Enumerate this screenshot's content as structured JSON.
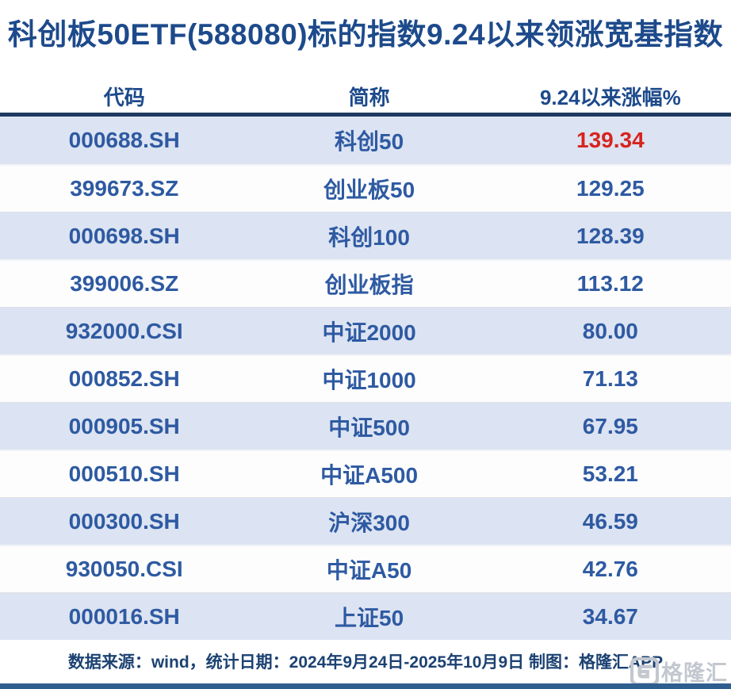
{
  "title": "科创板50ETF(588080)标的指数9.24以来领涨宽基指数",
  "table": {
    "headers": [
      "代码",
      "简称",
      "9.24以来涨幅%"
    ],
    "rows": [
      {
        "code": "000688.SH",
        "name": "科创50",
        "change": "139.34",
        "highlight": true
      },
      {
        "code": "399673.SZ",
        "name": "创业板50",
        "change": "129.25",
        "highlight": false
      },
      {
        "code": "000698.SH",
        "name": "科创100",
        "change": "128.39",
        "highlight": false
      },
      {
        "code": "399006.SZ",
        "name": "创业板指",
        "change": "113.12",
        "highlight": false
      },
      {
        "code": "932000.CSI",
        "name": "中证2000",
        "change": "80.00",
        "highlight": false
      },
      {
        "code": "000852.SH",
        "name": "中证1000",
        "change": "71.13",
        "highlight": false
      },
      {
        "code": "000905.SH",
        "name": "中证500",
        "change": "67.95",
        "highlight": false
      },
      {
        "code": "000510.SH",
        "name": "中证A500",
        "change": "53.21",
        "highlight": false
      },
      {
        "code": "000300.SH",
        "name": "沪深300",
        "change": "46.59",
        "highlight": false
      },
      {
        "code": "930050.CSI",
        "name": "中证A50",
        "change": "42.76",
        "highlight": false
      },
      {
        "code": "000016.SH",
        "name": "上证50",
        "change": "34.67",
        "highlight": false
      }
    ]
  },
  "footer": {
    "text": "数据来源：wind，统计日期：2024年9月24日-2025年10月9日 制图：格隆汇APP"
  },
  "logo": {
    "icon": "gelonghui-g-icon",
    "text": "格隆汇"
  },
  "colors": {
    "accent_navy": "#1d4a8b",
    "cell_blue": "#2e5aa2",
    "highlight_red": "#d6251f",
    "row_alt_bg": "#dce3f2",
    "top_border": "#1e3a5f",
    "bottom_border": "#2f5f8f",
    "footer_navy": "#1c4272",
    "logo_gray": "#c3c7cf"
  },
  "chart_data": {
    "type": "table",
    "title": "科创板50ETF(588080)标的指数9.24以来领涨宽基指数",
    "columns": [
      "代码",
      "简称",
      "9.24以来涨幅%"
    ],
    "rows": [
      [
        "000688.SH",
        "科创50",
        139.34
      ],
      [
        "399673.SZ",
        "创业板50",
        129.25
      ],
      [
        "000698.SH",
        "科创100",
        128.39
      ],
      [
        "399006.SZ",
        "创业板指",
        113.12
      ],
      [
        "932000.CSI",
        "中证2000",
        80.0
      ],
      [
        "000852.SH",
        "中证1000",
        71.13
      ],
      [
        "000905.SH",
        "中证500",
        67.95
      ],
      [
        "000510.SH",
        "中证A500",
        53.21
      ],
      [
        "000300.SH",
        "沪深300",
        46.59
      ],
      [
        "930050.CSI",
        "中证A50",
        42.76
      ],
      [
        "000016.SH",
        "上证50",
        34.67
      ]
    ],
    "highlight_row_index": 0,
    "highlight_color": "#d6251f",
    "source_note": "数据来源：wind，统计日期：2024年9月24日-2025年10月9日 制图：格隆汇APP"
  }
}
